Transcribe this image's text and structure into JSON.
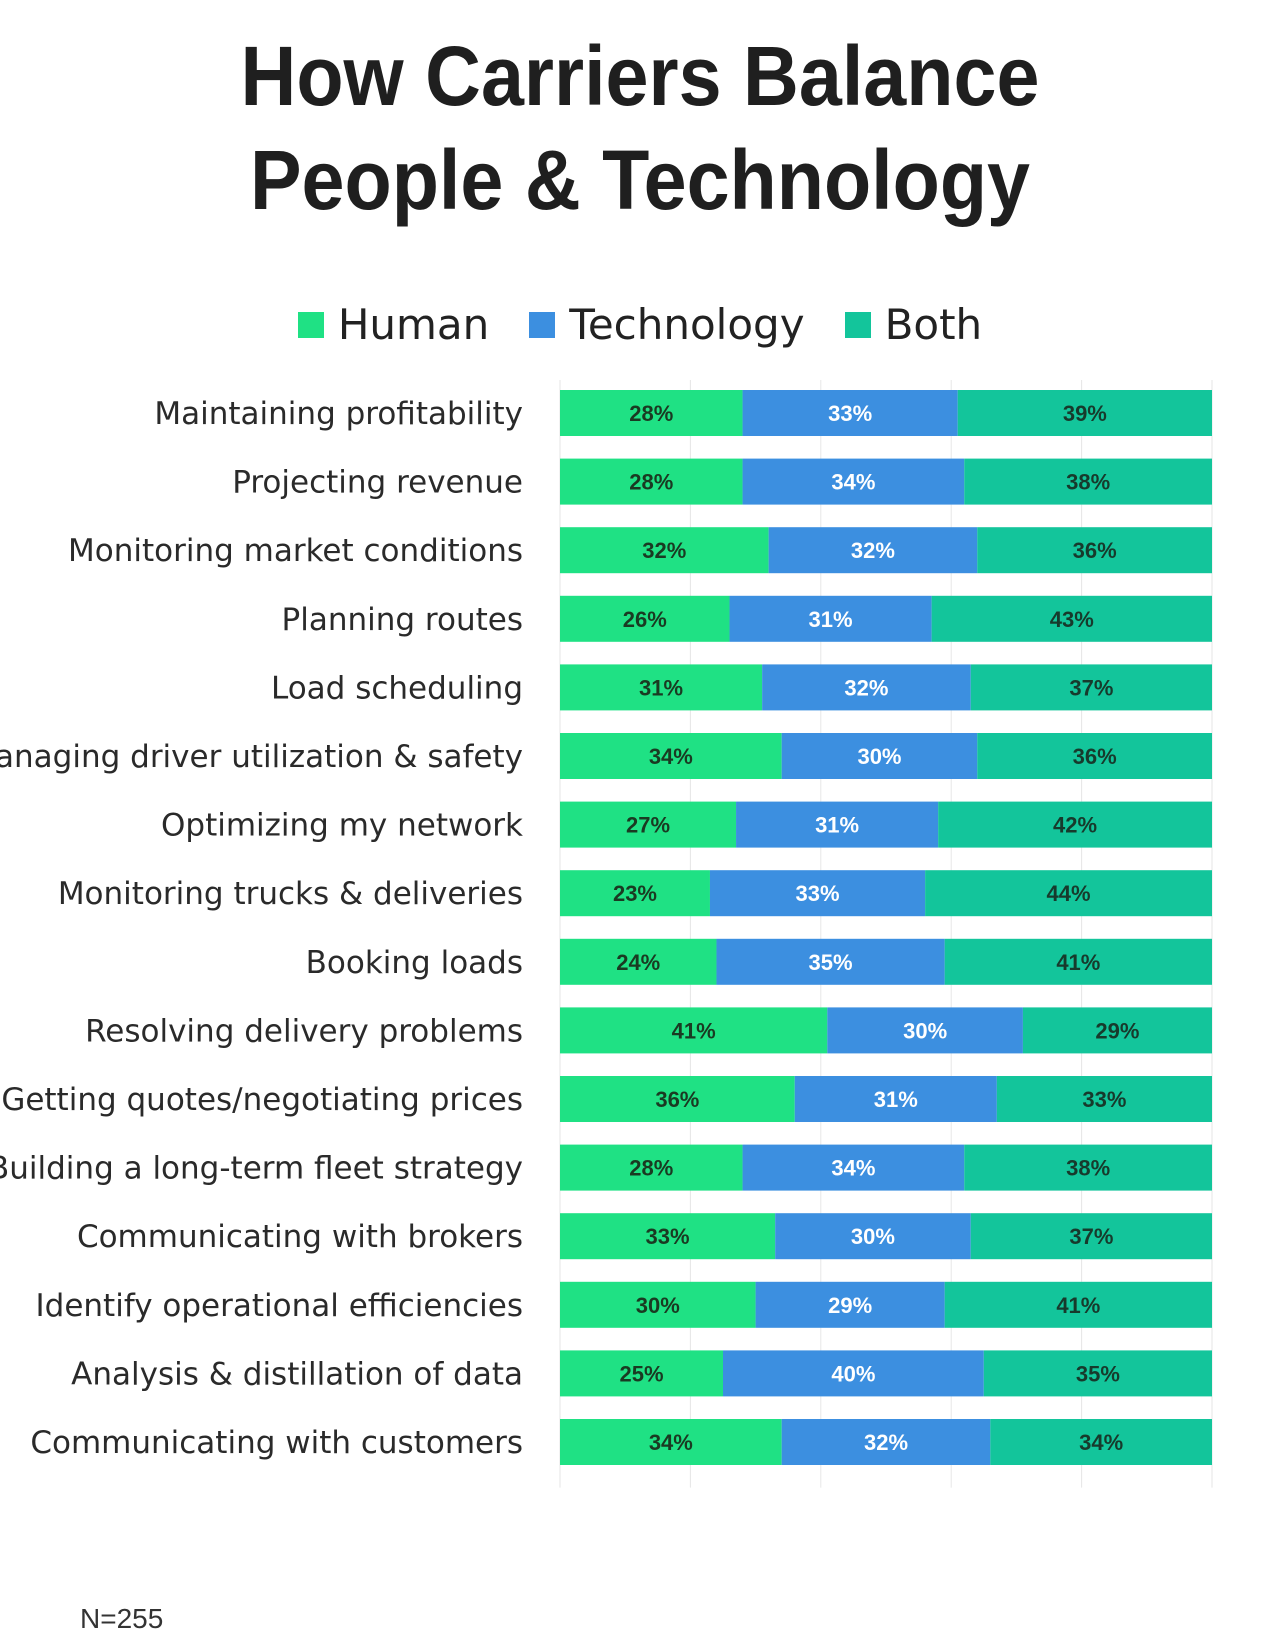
{
  "chart_data": {
    "type": "bar",
    "orientation": "horizontal",
    "stacked": true,
    "title": "How Carriers Balance People & Technology",
    "title_lines": [
      "How Carriers Balance",
      "People & Technology"
    ],
    "xlim": [
      0,
      100
    ],
    "grid": true,
    "legend_placement": "top",
    "categories": [
      "Maintaining profitability",
      "Projecting revenue",
      "Monitoring market conditions",
      "Planning routes",
      "Load scheduling",
      "Managing driver utilization & safety",
      "Optimizing my network",
      "Monitoring trucks & deliveries",
      "Booking loads",
      "Resolving delivery problems",
      "Getting quotes/negotiating prices",
      "Building a long-term fleet strategy",
      "Communicating with brokers",
      "Identify operational efficiencies",
      "Analysis & distillation of data",
      "Communicating with customers"
    ],
    "series": [
      {
        "name": "Human",
        "color": "#1fe184",
        "label_color": "#1a3a22",
        "values": [
          28,
          28,
          32,
          26,
          31,
          34,
          27,
          23,
          24,
          41,
          36,
          28,
          33,
          30,
          25,
          34
        ]
      },
      {
        "name": "Technology",
        "color": "#3c8fe0",
        "label_color": "#ffffff",
        "values": [
          33,
          34,
          32,
          31,
          32,
          30,
          31,
          33,
          35,
          30,
          31,
          34,
          30,
          29,
          40,
          32
        ]
      },
      {
        "name": "Both",
        "color": "#13c59b",
        "label_color": "#173a2c",
        "values": [
          39,
          38,
          36,
          43,
          37,
          36,
          42,
          44,
          41,
          29,
          33,
          38,
          37,
          41,
          35,
          34
        ]
      }
    ],
    "value_suffix": "%",
    "footnote": "N=255"
  }
}
